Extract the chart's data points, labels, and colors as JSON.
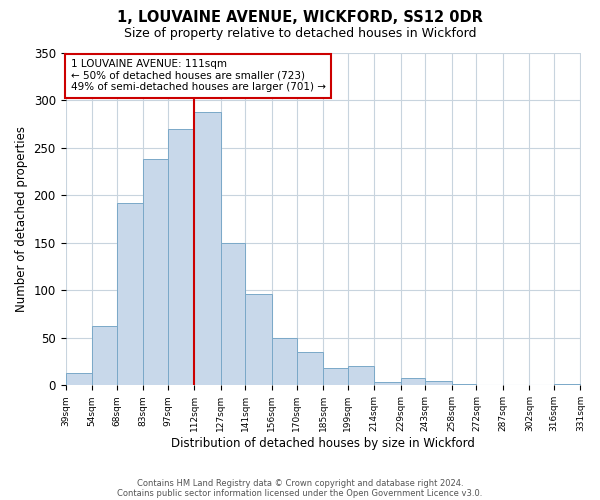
{
  "title": "1, LOUVAINE AVENUE, WICKFORD, SS12 0DR",
  "subtitle": "Size of property relative to detached houses in Wickford",
  "xlabel": "Distribution of detached houses by size in Wickford",
  "ylabel": "Number of detached properties",
  "bar_left_edges": [
    39,
    54,
    68,
    83,
    97,
    112,
    127,
    141,
    156,
    170,
    185,
    199,
    214,
    229,
    243,
    258,
    272,
    287,
    302,
    316
  ],
  "bar_heights": [
    13,
    62,
    192,
    238,
    270,
    287,
    150,
    96,
    50,
    35,
    18,
    20,
    4,
    8,
    5,
    1,
    0,
    0,
    0,
    1
  ],
  "bin_widths": [
    15,
    14,
    15,
    14,
    15,
    15,
    14,
    15,
    14,
    15,
    14,
    15,
    15,
    14,
    15,
    14,
    15,
    15,
    14,
    15
  ],
  "tick_labels": [
    "39sqm",
    "54sqm",
    "68sqm",
    "83sqm",
    "97sqm",
    "112sqm",
    "127sqm",
    "141sqm",
    "156sqm",
    "170sqm",
    "185sqm",
    "199sqm",
    "214sqm",
    "229sqm",
    "243sqm",
    "258sqm",
    "272sqm",
    "287sqm",
    "302sqm",
    "316sqm",
    "331sqm"
  ],
  "bar_color": "#c8d8ea",
  "bar_edge_color": "#7aa8c8",
  "vline_x": 112,
  "vline_color": "#cc0000",
  "ylim": [
    0,
    350
  ],
  "yticks": [
    0,
    50,
    100,
    150,
    200,
    250,
    300,
    350
  ],
  "annotation_title": "1 LOUVAINE AVENUE: 111sqm",
  "annotation_line1": "← 50% of detached houses are smaller (723)",
  "annotation_line2": "49% of semi-detached houses are larger (701) →",
  "annotation_box_color": "#ffffff",
  "annotation_box_edge": "#cc0000",
  "footer1": "Contains HM Land Registry data © Crown copyright and database right 2024.",
  "footer2": "Contains public sector information licensed under the Open Government Licence v3.0.",
  "background_color": "#ffffff",
  "grid_color": "#c8d4de",
  "xlim_left": 39,
  "xlim_right": 331
}
